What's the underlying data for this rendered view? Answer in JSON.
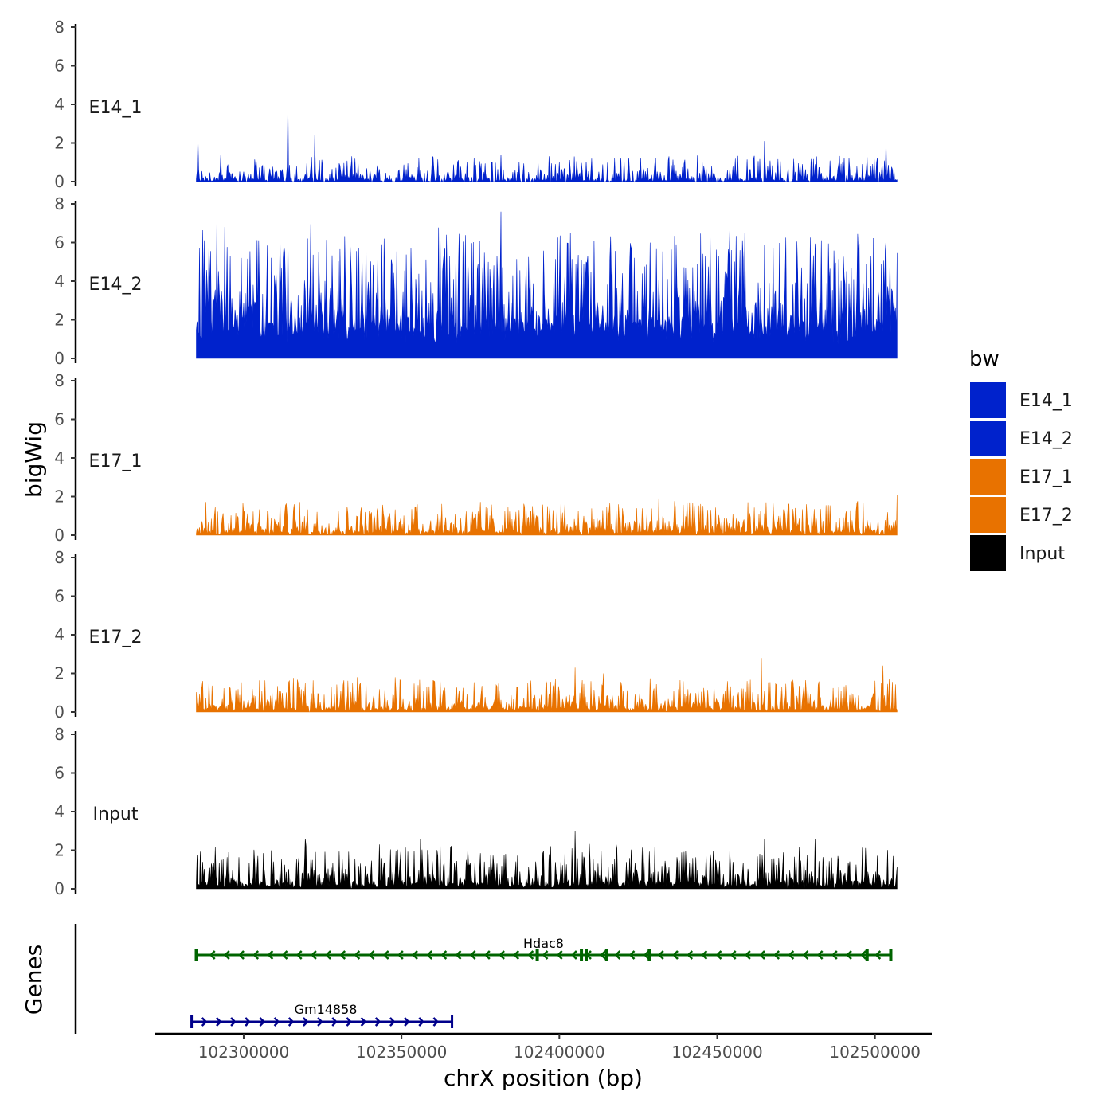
{
  "chart_data": {
    "type": "area",
    "title": "",
    "xlabel": "chrX position (bp)",
    "ylabel": "bigWig",
    "genes_label": "Genes",
    "chromosome": "chrX",
    "xlim": [
      102272000,
      102518000
    ],
    "data_range": [
      102285000,
      102507000
    ],
    "x_ticks": [
      102300000,
      102350000,
      102400000,
      102450000,
      102500000
    ],
    "x_tick_labels": [
      "102300000",
      "102350000",
      "102400000",
      "102450000",
      "102500000"
    ],
    "ylim": [
      0,
      8
    ],
    "y_ticks": [
      0,
      2,
      4,
      6,
      8
    ],
    "y_tick_labels": [
      "0",
      "2",
      "4",
      "6",
      "8"
    ],
    "series": [
      {
        "name": "E14_1",
        "color": "#0022CC",
        "baseline": 0.15,
        "typical_peak": 0.8,
        "max": 4.1,
        "notable_peaks": [
          [
            102285500,
            2.3
          ],
          [
            102314000,
            4.1
          ],
          [
            102322500,
            2.4
          ],
          [
            102381500,
            1.4
          ],
          [
            102465000,
            2.1
          ],
          [
            102503500,
            2.1
          ]
        ]
      },
      {
        "name": "E14_2",
        "color": "#0022CC",
        "baseline": 1.2,
        "typical_peak": 4.0,
        "max": 7.6,
        "notable_peaks": [
          [
            102289500,
            5.4
          ],
          [
            102294000,
            6.8
          ],
          [
            102312500,
            5.2
          ],
          [
            102344500,
            6.2
          ],
          [
            102381500,
            7.6
          ],
          [
            102402500,
            5.6
          ],
          [
            102437000,
            5.9
          ],
          [
            102503500,
            6.1
          ]
        ]
      },
      {
        "name": "E17_1",
        "color": "#E87200",
        "baseline": 0.2,
        "typical_peak": 1.0,
        "max": 2.1,
        "notable_peaks": [
          [
            102316000,
            1.6
          ],
          [
            102355000,
            1.6
          ],
          [
            102398000,
            1.3
          ],
          [
            102431500,
            1.9
          ],
          [
            102465500,
            1.7
          ],
          [
            102507000,
            2.1
          ]
        ]
      },
      {
        "name": "E17_2",
        "color": "#E87200",
        "baseline": 0.2,
        "typical_peak": 1.0,
        "max": 2.8,
        "notable_peaks": [
          [
            102336000,
            1.8
          ],
          [
            102348000,
            1.8
          ],
          [
            102405000,
            2.3
          ],
          [
            102414000,
            2.0
          ],
          [
            102464000,
            2.8
          ],
          [
            102502500,
            2.4
          ]
        ]
      },
      {
        "name": "Input",
        "color": "#000000",
        "baseline": 0.3,
        "typical_peak": 1.3,
        "max": 3.0,
        "notable_peaks": [
          [
            102319500,
            2.6
          ],
          [
            102343000,
            2.3
          ],
          [
            102356000,
            2.6
          ],
          [
            102405000,
            3.0
          ],
          [
            102418000,
            2.3
          ],
          [
            102465000,
            2.6
          ],
          [
            102481000,
            2.6
          ]
        ]
      }
    ],
    "genes": [
      {
        "name": "Hdac8",
        "start": 102285000,
        "end": 102505000,
        "strand": "-",
        "color": "#006400",
        "exons": [
          102285000,
          102393000,
          102407000,
          102408500,
          102415000,
          102428500,
          102497500,
          102505000
        ]
      },
      {
        "name": "Gm14858",
        "start": 102283500,
        "end": 102366000,
        "strand": "+",
        "color": "#00008B",
        "exons": []
      }
    ],
    "legend": {
      "title": "bw",
      "position": "right",
      "items": [
        {
          "label": "E14_1",
          "color": "#0022CC"
        },
        {
          "label": "E14_2",
          "color": "#0022CC"
        },
        {
          "label": "E17_1",
          "color": "#E87200"
        },
        {
          "label": "E17_2",
          "color": "#E87200"
        },
        {
          "label": "Input",
          "color": "#000000"
        }
      ]
    }
  }
}
